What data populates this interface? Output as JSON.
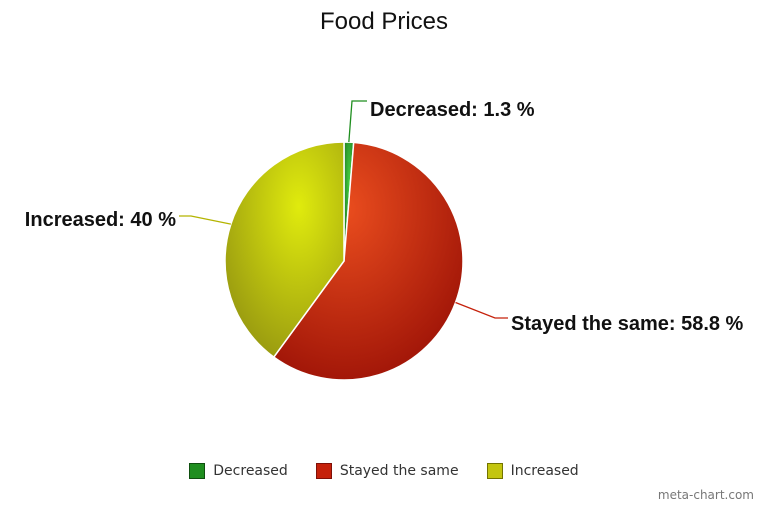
{
  "chart_data": {
    "type": "pie",
    "title": "Food Prices",
    "slices": [
      {
        "label": "Decreased",
        "value": 1.3,
        "display": "Decreased: 1.3 %",
        "color": "#1f8e1f"
      },
      {
        "label": "Stayed the same",
        "value": 58.8,
        "display": "Stayed the same: 58.8 %",
        "color": "#c5210b"
      },
      {
        "label": "Increased",
        "value": 40,
        "display": "Increased: 40 %",
        "color": "#c3c50f"
      }
    ],
    "legend": {
      "placement": "bottom",
      "entries": [
        "Decreased",
        "Stayed the same",
        "Increased"
      ]
    }
  },
  "footer": {
    "credit": "meta-chart.com"
  }
}
